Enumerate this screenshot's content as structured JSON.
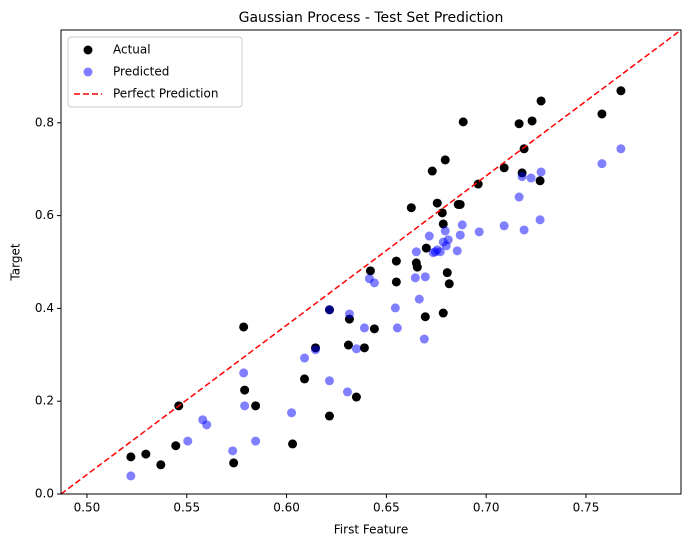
{
  "chart_data": {
    "type": "scatter",
    "title": "Gaussian Process - Test Set Prediction",
    "x_label": "First Feature",
    "y_label": "Target",
    "xlim": [
      0.487,
      0.7976
    ],
    "ylim": [
      0,
      1.0
    ],
    "xticks": [
      {
        "value": 0.5,
        "label": "0.50"
      },
      {
        "value": 0.55,
        "label": "0.55"
      },
      {
        "value": 0.6,
        "label": "0.60"
      },
      {
        "value": 0.65,
        "label": "0.65"
      },
      {
        "value": 0.7,
        "label": "0.70"
      },
      {
        "value": 0.75,
        "label": "0.75"
      }
    ],
    "yticks": [
      {
        "value": 0,
        "label": "0.0"
      },
      0.2,
      0.4,
      0.6,
      0.8
    ],
    "legend": "upper left",
    "series": [
      {
        "name": "Actual",
        "color": "#000000",
        "alpha": 1,
        "x": [
          0.522,
          0.5295,
          0.537,
          0.5445,
          0.546,
          0.5735,
          0.5785,
          0.579,
          0.5845,
          0.603,
          0.609,
          0.6145,
          0.6215,
          0.6215,
          0.631,
          0.6315,
          0.635,
          0.639,
          0.642,
          0.644,
          0.655,
          0.655,
          0.6625,
          0.665,
          0.6655,
          0.6695,
          0.67,
          0.673,
          0.6755,
          0.678,
          0.6785,
          0.6785,
          0.6795,
          0.6805,
          0.6815,
          0.686,
          0.687,
          0.6885,
          0.696,
          0.709,
          0.7165,
          0.718,
          0.719,
          0.723,
          0.727,
          0.7275,
          0.758,
          0.7675
        ],
        "values": [
          0.08,
          0.086,
          0.063,
          0.104,
          0.19,
          0.067,
          0.36,
          0.224,
          0.19,
          0.108,
          0.248,
          0.315,
          0.168,
          0.397,
          0.321,
          0.377,
          0.209,
          0.315,
          0.481,
          0.356,
          0.502,
          0.457,
          0.617,
          0.498,
          0.489,
          0.382,
          0.53,
          0.696,
          0.627,
          0.606,
          0.582,
          0.39,
          0.72,
          0.477,
          0.453,
          0.624,
          0.624,
          0.802,
          0.668,
          0.703,
          0.798,
          0.692,
          0.744,
          0.804,
          0.675,
          0.847,
          0.819,
          0.869
        ]
      },
      {
        "name": "Predicted",
        "color": "#0000ff",
        "alpha": 0.5,
        "x": [
          0.522,
          0.5505,
          0.558,
          0.56,
          0.573,
          0.5785,
          0.579,
          0.5845,
          0.6025,
          0.609,
          0.6145,
          0.6215,
          0.6215,
          0.6305,
          0.6315,
          0.635,
          0.639,
          0.6415,
          0.644,
          0.6545,
          0.6555,
          0.6645,
          0.665,
          0.6665,
          0.669,
          0.6695,
          0.6715,
          0.6735,
          0.6745,
          0.6755,
          0.677,
          0.6785,
          0.6795,
          0.68,
          0.681,
          0.6855,
          0.687,
          0.688,
          0.6965,
          0.709,
          0.7165,
          0.718,
          0.719,
          0.7225,
          0.727,
          0.7275,
          0.758,
          0.7675
        ],
        "values": [
          0.039,
          0.114,
          0.16,
          0.149,
          0.093,
          0.261,
          0.19,
          0.114,
          0.175,
          0.293,
          0.311,
          0.244,
          0.397,
          0.22,
          0.388,
          0.313,
          0.358,
          0.464,
          0.455,
          0.401,
          0.358,
          0.466,
          0.522,
          0.42,
          0.334,
          0.468,
          0.556,
          0.52,
          0.522,
          0.526,
          0.522,
          0.543,
          0.567,
          0.535,
          0.548,
          0.524,
          0.558,
          0.58,
          0.565,
          0.578,
          0.64,
          0.684,
          0.569,
          0.681,
          0.591,
          0.694,
          0.712,
          0.744
        ]
      },
      {
        "name": "Perfect Prediction",
        "color": "#ff0000",
        "line": "dashed",
        "x": [
          0.487,
          0.7976
        ],
        "values": [
          0,
          1.0
        ]
      }
    ]
  }
}
